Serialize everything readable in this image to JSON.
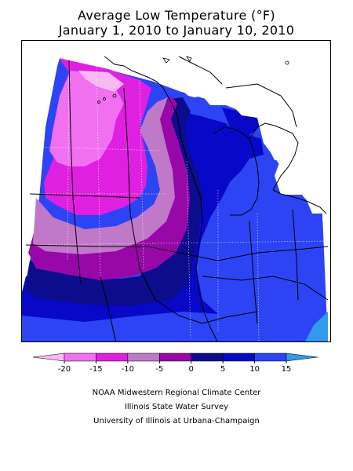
{
  "title": {
    "line1": "Average Low Temperature (°F)",
    "line2": "January 1, 2010 to January 10, 2010"
  },
  "legend": {
    "ticks": [
      "-20",
      "-15",
      "-10",
      "-5",
      "0",
      "5",
      "10",
      "15"
    ],
    "bins": [
      {
        "range": "< -20",
        "color": "#f8b8f4"
      },
      {
        "range": "-20 to -15",
        "color": "#f070f0"
      },
      {
        "range": "-15 to -10",
        "color": "#e020e0"
      },
      {
        "range": "-10 to -5",
        "color": "#c078c8"
      },
      {
        "range": "-5 to 0",
        "color": "#9808a8"
      },
      {
        "range": "0 to 5",
        "color": "#0c0c8c"
      },
      {
        "range": "5 to 10",
        "color": "#0808c8"
      },
      {
        "range": "10 to 15",
        "color": "#2c44f4"
      },
      {
        "range": "> 15",
        "color": "#3498ec"
      }
    ]
  },
  "credits": [
    "NOAA Midwestern Regional Climate Center",
    "Illinois State Water Survey",
    "University of Illinois at Urbana-Champaign"
  ]
}
